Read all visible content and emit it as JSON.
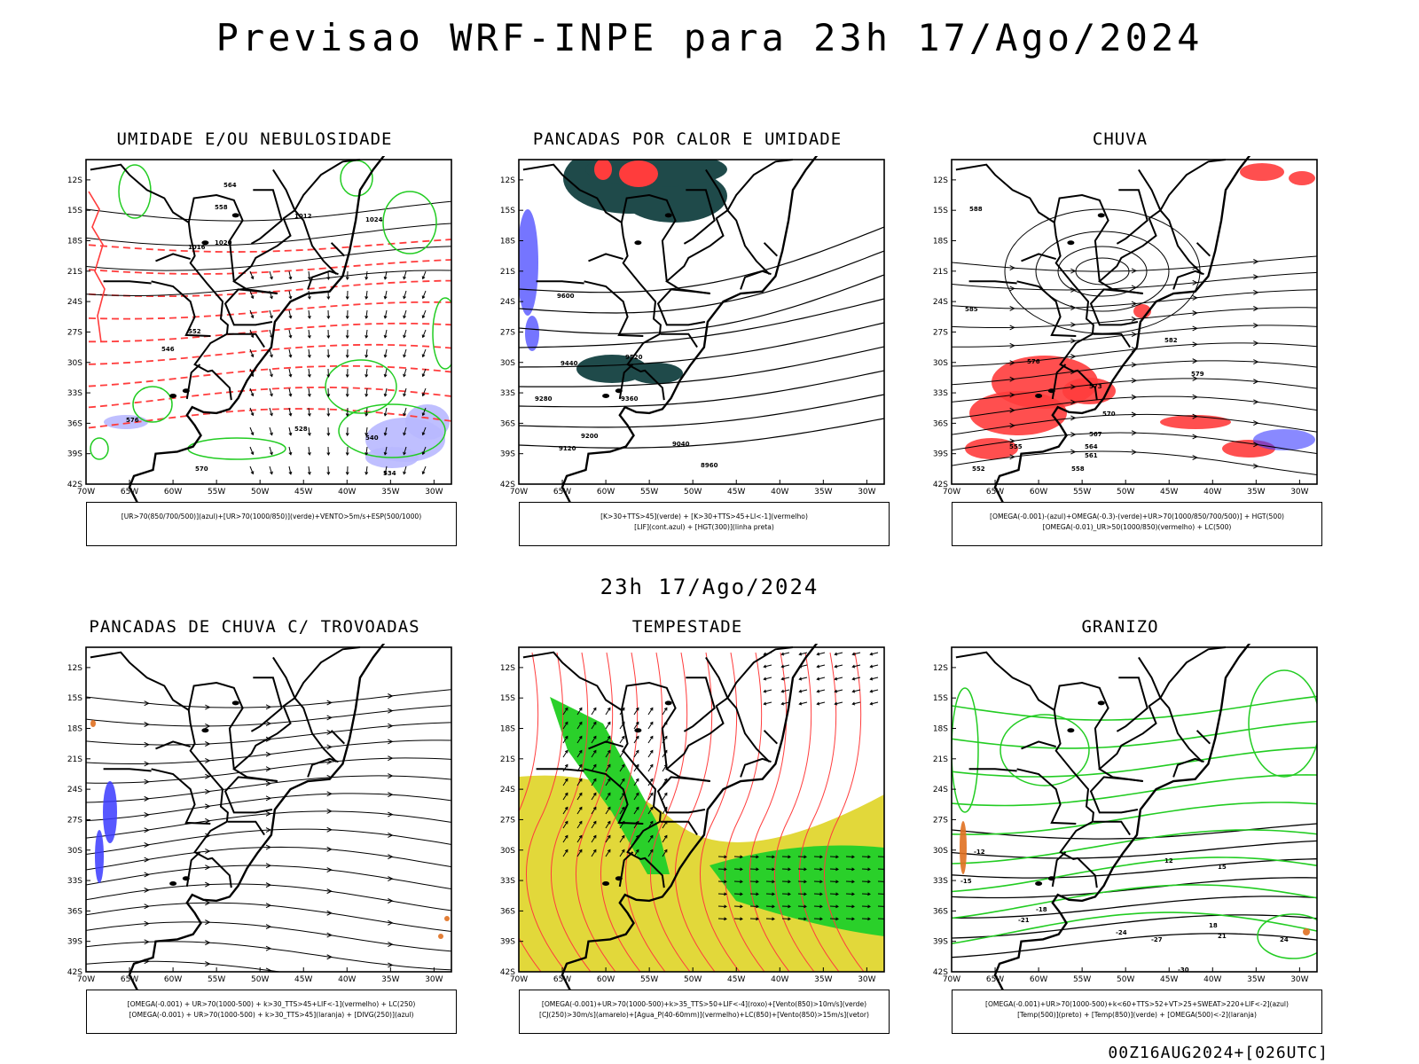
{
  "title": "Previsao WRF-INPE  para 23h 17/Ago/2024",
  "subtitle": "23h 17/Ago/2024",
  "footer": "00Z16AUG2024+[026UTC]",
  "axes": {
    "lat_labels": [
      "12S",
      "15S",
      "18S",
      "21S",
      "24S",
      "27S",
      "30S",
      "33S",
      "36S",
      "39S",
      "42S"
    ],
    "lon_labels": [
      "70W",
      "65W",
      "60W",
      "55W",
      "50W",
      "45W",
      "40W",
      "35W",
      "30W"
    ]
  },
  "panels": [
    {
      "title": "UMIDADE E/OU NEBULOSIDADE",
      "legend": [
        "[UR>70(850/700/500)](azul)+[UR>70(1000/850)](verde)+VENTO>5m/s+ESP(500/1000)"
      ],
      "labels": [
        "1012",
        "1016",
        "1020",
        "1024",
        "576",
        "570",
        "564",
        "558",
        "552",
        "546",
        "540",
        "534",
        "528"
      ]
    },
    {
      "title": "PANCADAS POR CALOR E UMIDADE",
      "legend": [
        "[K>30+TTS>45](verde) + [K>30+TTS>45+LI<-1](vermelho)",
        "[LIF](cont.azul) + [HGT(300)](linha preta)"
      ],
      "labels": [
        "9600",
        "9520",
        "9440",
        "9360",
        "9280",
        "9200",
        "9120",
        "9040",
        "8960"
      ]
    },
    {
      "title": "CHUVA",
      "legend": [
        "[OMEGA(-0.001)-(azul)+OMEGA(-0.3)-(verde)+UR>70(1000/850/700/500)] + HGT(500)",
        "[OMEGA(-0.01)_UR>50(1000/850)(vermelho) + LC(500)"
      ],
      "labels": [
        "588",
        "585",
        "582",
        "579",
        "576",
        "573",
        "570",
        "567",
        "564",
        "561",
        "558",
        "555",
        "552"
      ]
    },
    {
      "title": "PANCADAS DE CHUVA C/ TROVOADAS",
      "legend": [
        "[OMEGA(-0.001) + UR>70(1000-500) + k>30_TTS>45+LIF<-1](vermelho) + LC(250)",
        "[OMEGA(-0.001) + UR>70(1000-500) + k>30_TTS>45](laranja) + [DIVG(250)](azul)"
      ],
      "labels": []
    },
    {
      "title": "TEMPESTADE",
      "legend": [
        "[OMEGA(-0.001)+UR>70(1000-500)+k>35_TTS>50+LIF<-4](roxo)+[Vento(850)>10m/s](verde)",
        "[CJ(250)>30m/s](amarelo)+[Agua_P(40-60mm)](vermelho)+LC(850)+[Vento(850)>15m/s](vetor)"
      ],
      "labels": []
    },
    {
      "title": "GRANIZO",
      "legend": [
        "[OMEGA(-0.001)+UR>70(1000-500)+k<60+TTS>52+VT>25+SWEAT>220+LIF<-2](azul)",
        "[Temp(500)](preto) + [Temp(850)](verde) + [OMEGA(500)<-2](laranja)"
      ],
      "labels": [
        "-12",
        "-15",
        "-18",
        "-21",
        "-24",
        "-27",
        "-30",
        "12",
        "15",
        "18",
        "21",
        "24"
      ]
    }
  ],
  "colors": {
    "contour_black": "#000000",
    "red": "#ff3c3c",
    "green": "#22cc22",
    "blue": "#3a3aff",
    "lavender": "#b8b8ff",
    "darkteal": "#1f4a4a",
    "yellow": "#e2d83a",
    "bright_green": "#2ad02a",
    "orange": "#e07020"
  }
}
